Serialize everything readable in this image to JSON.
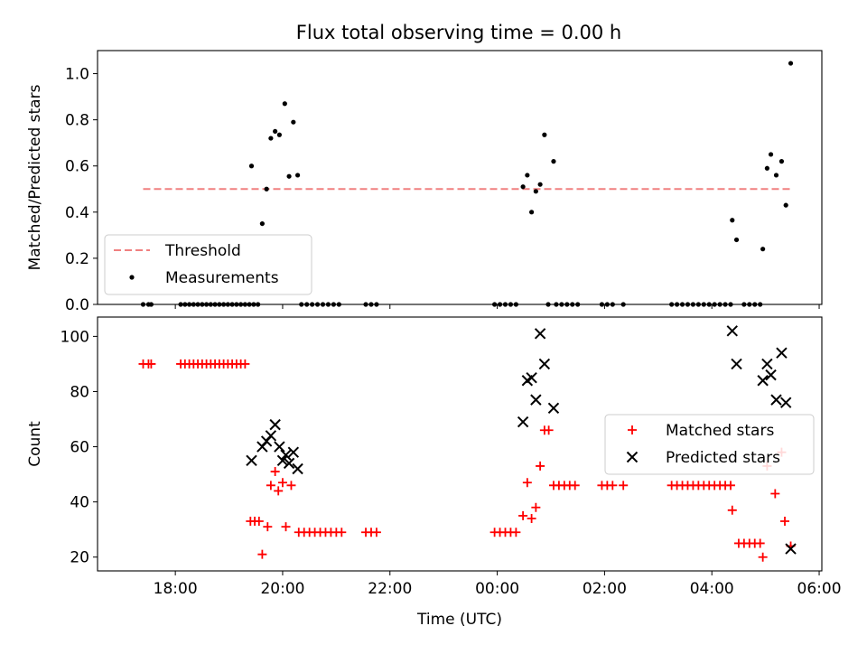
{
  "title": "Flux total observing time = 0.00 h",
  "chart_data": [
    {
      "type": "scatter",
      "panel": "top",
      "ylabel": "Matched/Predicted stars",
      "xlabel": "",
      "ylim": [
        0.0,
        1.1
      ],
      "yticks": [
        0.0,
        0.2,
        0.4,
        0.6,
        0.8,
        1.0
      ],
      "ytick_labels": [
        "0.0",
        "0.2",
        "0.4",
        "0.6",
        "0.8",
        "1.0"
      ],
      "xlim_hours": [
        16.55,
        30.05
      ],
      "legend": {
        "placement": "lower-left",
        "entries": [
          "Threshold",
          "Measurements"
        ]
      },
      "threshold": {
        "name": "Threshold",
        "value": 0.5,
        "x_start": 17.4,
        "x_end": 29.5,
        "color": "#f08080",
        "style": "dashed"
      },
      "series": [
        {
          "name": "Measurements",
          "color": "#000000",
          "marker": "dot",
          "points": [
            [
              17.4,
              0
            ],
            [
              17.5,
              0
            ],
            [
              17.55,
              0
            ],
            [
              18.1,
              0
            ],
            [
              18.18,
              0
            ],
            [
              18.26,
              0
            ],
            [
              18.34,
              0
            ],
            [
              18.42,
              0
            ],
            [
              18.5,
              0
            ],
            [
              18.58,
              0
            ],
            [
              18.66,
              0
            ],
            [
              18.74,
              0
            ],
            [
              18.82,
              0
            ],
            [
              18.9,
              0
            ],
            [
              18.98,
              0
            ],
            [
              19.06,
              0
            ],
            [
              19.14,
              0
            ],
            [
              19.22,
              0
            ],
            [
              19.3,
              0
            ],
            [
              19.38,
              0
            ],
            [
              19.46,
              0
            ],
            [
              19.54,
              0
            ],
            [
              19.42,
              0.6
            ],
            [
              19.62,
              0.35
            ],
            [
              19.7,
              0.5
            ],
            [
              19.78,
              0.72
            ],
            [
              19.86,
              0.75
            ],
            [
              19.94,
              0.735
            ],
            [
              20.04,
              0.87
            ],
            [
              20.12,
              0.555
            ],
            [
              20.2,
              0.79
            ],
            [
              20.28,
              0.56
            ],
            [
              20.35,
              0
            ],
            [
              20.45,
              0
            ],
            [
              20.55,
              0
            ],
            [
              20.65,
              0
            ],
            [
              20.75,
              0
            ],
            [
              20.85,
              0
            ],
            [
              20.95,
              0
            ],
            [
              21.05,
              0
            ],
            [
              21.55,
              0
            ],
            [
              21.65,
              0
            ],
            [
              21.75,
              0
            ],
            [
              23.95,
              0
            ],
            [
              24.05,
              0
            ],
            [
              24.15,
              0
            ],
            [
              24.25,
              0
            ],
            [
              24.35,
              0
            ],
            [
              24.48,
              0.51
            ],
            [
              24.56,
              0.56
            ],
            [
              24.64,
              0.4
            ],
            [
              24.72,
              0.49
            ],
            [
              24.8,
              0.52
            ],
            [
              24.88,
              0.735
            ],
            [
              25.05,
              0.62
            ],
            [
              24.95,
              0
            ],
            [
              25.1,
              0
            ],
            [
              25.2,
              0
            ],
            [
              25.3,
              0
            ],
            [
              25.4,
              0
            ],
            [
              25.5,
              0
            ],
            [
              25.95,
              0
            ],
            [
              26.05,
              0
            ],
            [
              26.15,
              0
            ],
            [
              26.35,
              0
            ],
            [
              27.25,
              0
            ],
            [
              27.35,
              0
            ],
            [
              27.45,
              0
            ],
            [
              27.55,
              0
            ],
            [
              27.65,
              0
            ],
            [
              27.75,
              0
            ],
            [
              27.85,
              0
            ],
            [
              27.95,
              0
            ],
            [
              28.05,
              0
            ],
            [
              28.15,
              0
            ],
            [
              28.25,
              0
            ],
            [
              28.35,
              0
            ],
            [
              28.38,
              0.365
            ],
            [
              28.46,
              0.28
            ],
            [
              28.6,
              0
            ],
            [
              28.7,
              0
            ],
            [
              28.8,
              0
            ],
            [
              28.9,
              0
            ],
            [
              28.95,
              0.24
            ],
            [
              29.03,
              0.59
            ],
            [
              29.1,
              0.65
            ],
            [
              29.2,
              0.56
            ],
            [
              29.3,
              0.62
            ],
            [
              29.38,
              0.43
            ],
            [
              29.47,
              1.045
            ]
          ]
        }
      ]
    },
    {
      "type": "scatter",
      "panel": "bottom",
      "ylabel": "Count",
      "xlabel": "Time (UTC)",
      "ylim": [
        15,
        107
      ],
      "yticks": [
        20,
        40,
        60,
        80,
        100
      ],
      "ytick_labels": [
        "20",
        "40",
        "60",
        "80",
        "100"
      ],
      "xlim_hours": [
        16.55,
        30.05
      ],
      "xticks_hours": [
        18,
        20,
        22,
        24,
        26,
        28,
        30
      ],
      "xtick_labels": [
        "18:00",
        "20:00",
        "22:00",
        "00:00",
        "02:00",
        "04:00",
        "06:00"
      ],
      "legend": {
        "placement": "center-right",
        "entries": [
          "Matched stars",
          "Predicted stars"
        ]
      },
      "series": [
        {
          "name": "Matched stars",
          "color": "#ff0000",
          "marker": "plus",
          "points": [
            [
              17.4,
              90
            ],
            [
              17.5,
              90
            ],
            [
              17.55,
              90
            ],
            [
              18.1,
              90
            ],
            [
              18.18,
              90
            ],
            [
              18.26,
              90
            ],
            [
              18.34,
              90
            ],
            [
              18.42,
              90
            ],
            [
              18.5,
              90
            ],
            [
              18.58,
              90
            ],
            [
              18.66,
              90
            ],
            [
              18.74,
              90
            ],
            [
              18.82,
              90
            ],
            [
              18.9,
              90
            ],
            [
              18.98,
              90
            ],
            [
              19.06,
              90
            ],
            [
              19.14,
              90
            ],
            [
              19.22,
              90
            ],
            [
              19.3,
              90
            ],
            [
              19.4,
              33
            ],
            [
              19.48,
              33
            ],
            [
              19.56,
              33
            ],
            [
              19.62,
              21
            ],
            [
              19.72,
              31
            ],
            [
              19.78,
              46
            ],
            [
              19.86,
              51
            ],
            [
              19.92,
              44
            ],
            [
              20.0,
              47
            ],
            [
              20.06,
              31
            ],
            [
              20.16,
              46
            ],
            [
              20.3,
              29
            ],
            [
              20.4,
              29
            ],
            [
              20.5,
              29
            ],
            [
              20.6,
              29
            ],
            [
              20.7,
              29
            ],
            [
              20.8,
              29
            ],
            [
              20.9,
              29
            ],
            [
              21.0,
              29
            ],
            [
              21.1,
              29
            ],
            [
              21.55,
              29
            ],
            [
              21.65,
              29
            ],
            [
              21.75,
              29
            ],
            [
              23.95,
              29
            ],
            [
              24.05,
              29
            ],
            [
              24.15,
              29
            ],
            [
              24.25,
              29
            ],
            [
              24.35,
              29
            ],
            [
              24.48,
              35
            ],
            [
              24.56,
              47
            ],
            [
              24.64,
              34
            ],
            [
              24.72,
              38
            ],
            [
              24.8,
              53
            ],
            [
              24.88,
              66
            ],
            [
              24.96,
              66
            ],
            [
              25.05,
              46
            ],
            [
              25.15,
              46
            ],
            [
              25.25,
              46
            ],
            [
              25.35,
              46
            ],
            [
              25.45,
              46
            ],
            [
              25.95,
              46
            ],
            [
              26.05,
              46
            ],
            [
              26.15,
              46
            ],
            [
              26.35,
              46
            ],
            [
              27.25,
              46
            ],
            [
              27.35,
              46
            ],
            [
              27.45,
              46
            ],
            [
              27.55,
              46
            ],
            [
              27.65,
              46
            ],
            [
              27.75,
              46
            ],
            [
              27.85,
              46
            ],
            [
              27.95,
              46
            ],
            [
              28.05,
              46
            ],
            [
              28.15,
              46
            ],
            [
              28.25,
              46
            ],
            [
              28.35,
              46
            ],
            [
              28.38,
              37
            ],
            [
              28.5,
              25
            ],
            [
              28.6,
              25
            ],
            [
              28.7,
              25
            ],
            [
              28.8,
              25
            ],
            [
              28.9,
              25
            ],
            [
              28.95,
              20
            ],
            [
              29.03,
              53
            ],
            [
              29.18,
              43
            ],
            [
              29.3,
              58
            ],
            [
              29.36,
              33
            ],
            [
              29.47,
              24
            ]
          ]
        },
        {
          "name": "Predicted stars",
          "color": "#000000",
          "marker": "x",
          "points": [
            [
              19.42,
              55
            ],
            [
              19.62,
              60
            ],
            [
              19.7,
              62
            ],
            [
              19.78,
              64
            ],
            [
              19.86,
              68
            ],
            [
              19.94,
              60
            ],
            [
              20.0,
              55
            ],
            [
              20.06,
              57
            ],
            [
              20.12,
              54
            ],
            [
              20.2,
              58
            ],
            [
              20.28,
              52
            ],
            [
              24.48,
              69
            ],
            [
              24.56,
              84
            ],
            [
              24.64,
              85
            ],
            [
              24.72,
              77
            ],
            [
              24.8,
              101
            ],
            [
              24.88,
              90
            ],
            [
              25.05,
              74
            ],
            [
              28.38,
              102
            ],
            [
              28.46,
              90
            ],
            [
              28.95,
              84
            ],
            [
              29.03,
              90
            ],
            [
              29.1,
              86
            ],
            [
              29.2,
              77
            ],
            [
              29.3,
              94
            ],
            [
              29.38,
              76
            ],
            [
              29.47,
              23
            ]
          ]
        }
      ]
    }
  ]
}
